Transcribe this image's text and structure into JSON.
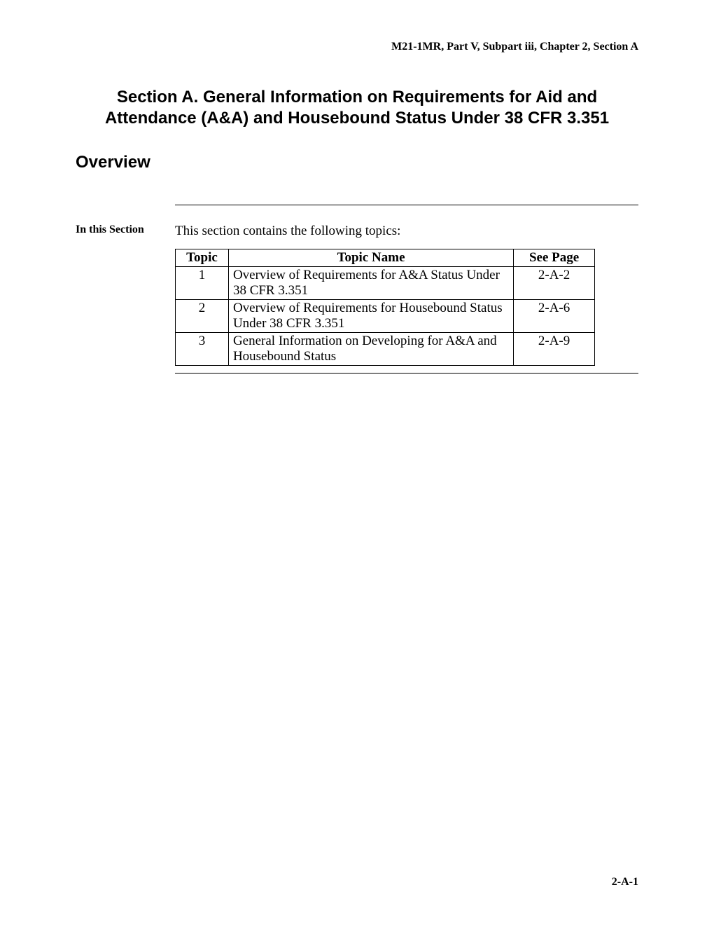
{
  "header": {
    "text": "M21-1MR, Part V, Subpart iii, Chapter 2, Section A"
  },
  "section_title": "Section A.  General Information on Requirements for Aid and Attendance (A&A) and Housebound Status Under 38 CFR 3.351",
  "overview_title": "Overview",
  "side_label": "In this Section",
  "intro_text": "This section contains the following topics:",
  "table": {
    "columns": {
      "topic": "Topic",
      "name": "Topic Name",
      "page": "See Page"
    },
    "rows": [
      {
        "topic": "1",
        "name": "Overview of Requirements for A&A Status Under 38 CFR 3.351",
        "page": "2-A-2"
      },
      {
        "topic": "2",
        "name": "Overview of Requirements for Housebound Status Under 38 CFR 3.351",
        "page": "2-A-6"
      },
      {
        "topic": "3",
        "name": "General Information on Developing for A&A and Housebound Status",
        "page": "2-A-9"
      }
    ]
  },
  "page_number": "2-A-1",
  "colors": {
    "text": "#000000",
    "background": "#ffffff",
    "border": "#000000"
  },
  "fonts": {
    "heading_family": "Arial",
    "body_family": "Times New Roman",
    "header_size": 16,
    "title_size": 24,
    "body_size": 19
  }
}
